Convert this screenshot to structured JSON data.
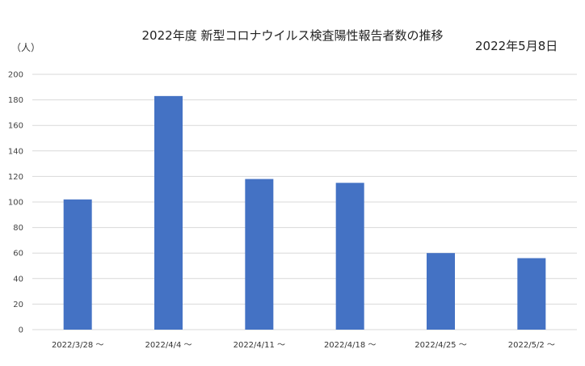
{
  "chart_data": {
    "type": "bar",
    "title": "2022年度 新型コロナウイルス検査陽性報告者数の推移",
    "date": "2022年5月8日",
    "ylabel": "（人）",
    "categories": [
      "2022/3/28 〜",
      "2022/4/4 〜",
      "2022/4/11 〜",
      "2022/4/18 〜",
      "2022/4/25 〜",
      "2022/5/2 〜"
    ],
    "values": [
      102,
      183,
      118,
      115,
      60,
      56
    ],
    "ylim": [
      0,
      200
    ],
    "yticks": [
      0,
      20,
      40,
      60,
      80,
      100,
      120,
      140,
      160,
      180,
      200
    ],
    "grid": true,
    "bar_color": "#4472C4",
    "grid_color": "#d9d9d9"
  }
}
